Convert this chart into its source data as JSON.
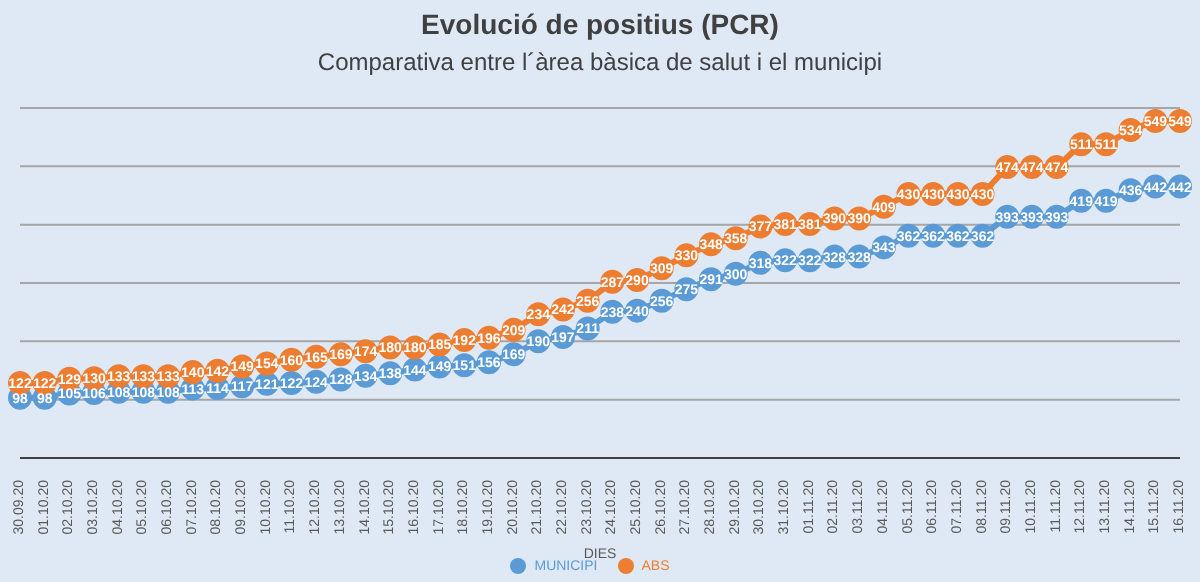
{
  "chart_data": {
    "type": "line",
    "title": "Evolució de positius (PCR)",
    "subtitle": "Comparativa entre l´àrea bàsica de salut i el municipi",
    "xlabel": "DIES",
    "categories": [
      "30.09.20",
      "01.10.20",
      "02.10.20",
      "03.10.20",
      "04.10.20",
      "05.10.20",
      "06.10.20",
      "07.10.20",
      "08.10.20",
      "09.10.20",
      "10.10.20",
      "11.10.20",
      "12.10.20",
      "13.10.20",
      "14.10.20",
      "15.10.20",
      "16.10.20",
      "17.10.20",
      "18.10.20",
      "19.10.20",
      "20.10.20",
      "21.10.20",
      "22.10.20",
      "23.10.20",
      "24.10.20",
      "25.10.20",
      "26.10.20",
      "27.10.20",
      "28.10.20",
      "29.10.20",
      "30.10.20",
      "31.10.20",
      "01.11.20",
      "02.11.20",
      "03.11.20",
      "04.11.20",
      "05.11.20",
      "06.11.20",
      "07.11.20",
      "08.11.20",
      "09.11.20",
      "10.11.20",
      "11.11.20",
      "12.11.20",
      "13.11.20",
      "14.11.20",
      "15.11.20",
      "16.11.20"
    ],
    "series": [
      {
        "name": "MUNICIPI",
        "color": "#5b9bd5",
        "values": [
          98,
          98,
          105,
          106,
          108,
          108,
          108,
          113,
          114,
          117,
          121,
          122,
          124,
          128,
          134,
          138,
          144,
          149,
          151,
          156,
          169,
          190,
          197,
          211,
          238,
          240,
          256,
          275,
          291,
          300,
          318,
          322,
          322,
          328,
          328,
          343,
          362,
          362,
          362,
          362,
          393,
          393,
          393,
          419,
          419,
          436,
          442,
          442
        ]
      },
      {
        "name": "ABS",
        "color": "#ed7d31",
        "values": [
          122,
          122,
          129,
          130,
          133,
          133,
          133,
          140,
          142,
          149,
          154,
          160,
          165,
          169,
          174,
          180,
          180,
          185,
          192,
          196,
          209,
          234,
          242,
          256,
          287,
          290,
          309,
          330,
          348,
          358,
          377,
          381,
          381,
          390,
          390,
          409,
          430,
          430,
          430,
          430,
          474,
          474,
          474,
          511,
          511,
          534,
          549,
          549
        ]
      }
    ],
    "tick_labels": "x",
    "grid": "y",
    "legend": "bottom",
    "marker": "circle",
    "line_style": "solid",
    "data_labels": true
  }
}
